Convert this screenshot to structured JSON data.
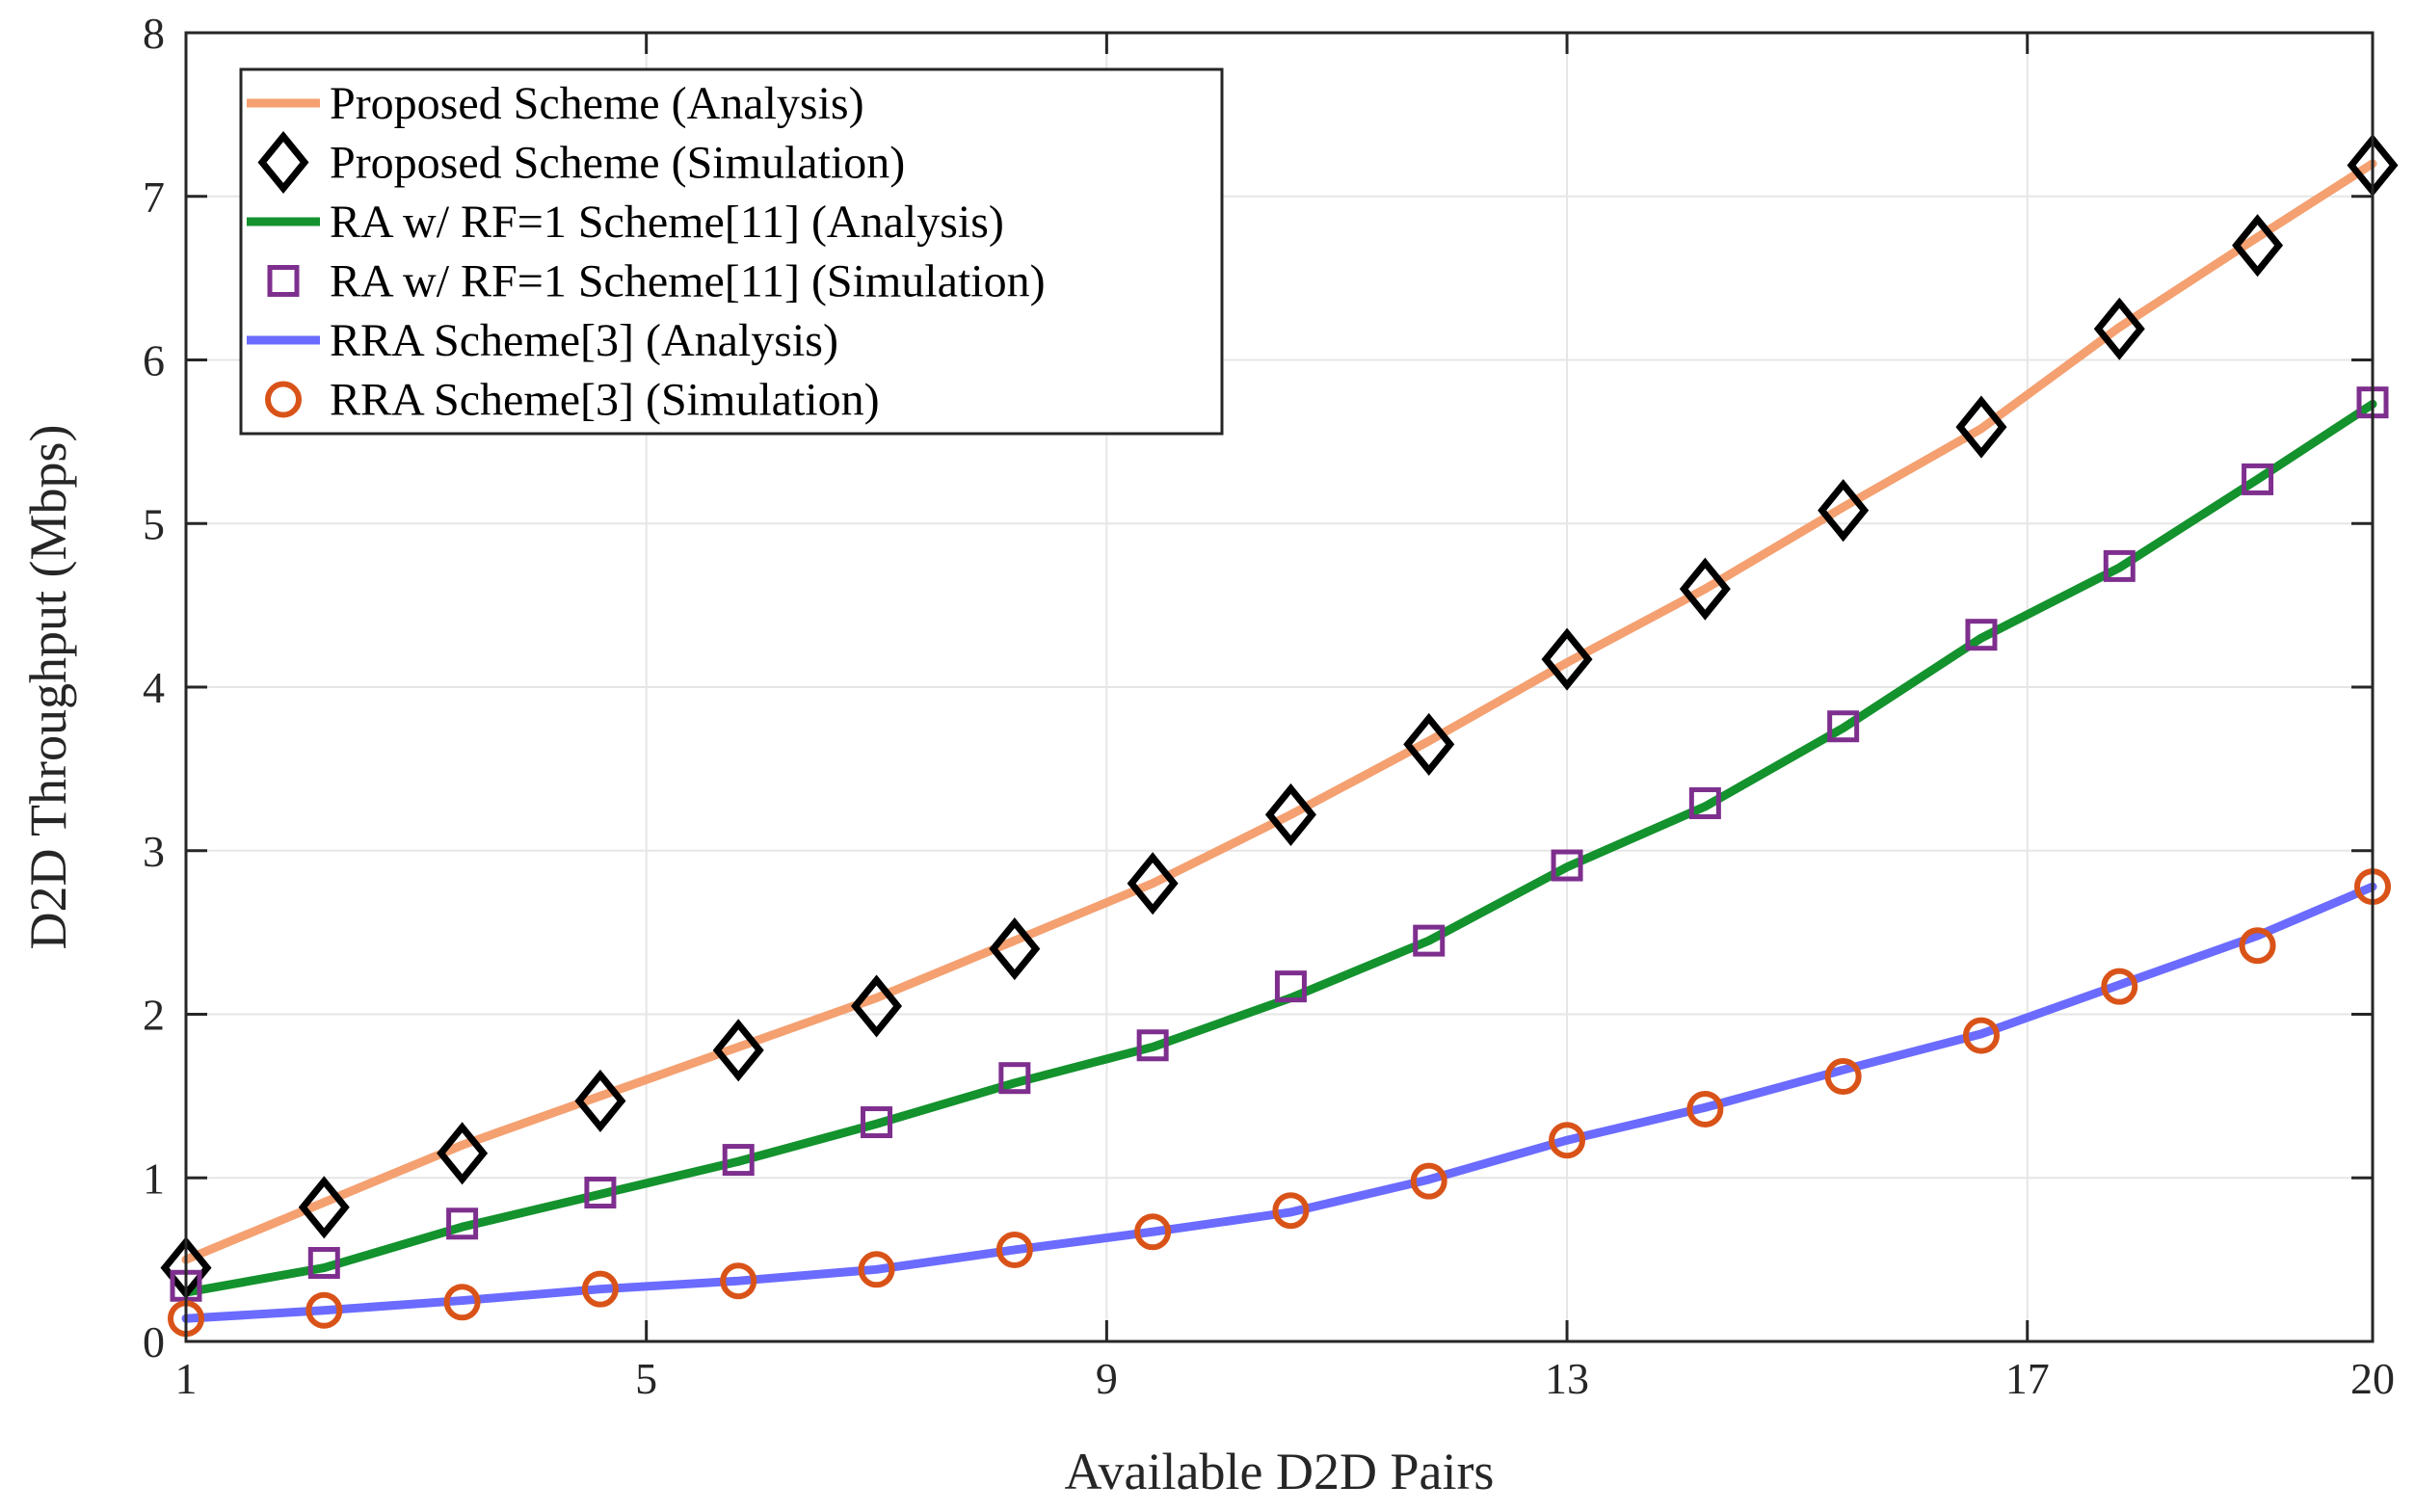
{
  "chart_data": {
    "type": "line",
    "title": "",
    "xlabel": "Available D2D Pairs",
    "ylabel": "D2D Throughput (Mbps)",
    "xlim": [
      1,
      20
    ],
    "ylim": [
      0,
      8
    ],
    "xticks": [
      1,
      5,
      9,
      13,
      17,
      20
    ],
    "yticks": [
      0,
      1,
      2,
      3,
      4,
      5,
      6,
      7,
      8
    ],
    "grid": true,
    "legend_position": "top-left",
    "x": [
      1,
      2.2,
      3.4,
      4.6,
      5.8,
      7,
      8.2,
      9.4,
      10.6,
      11.8,
      13,
      14.2,
      15.4,
      16.6,
      17.8,
      19,
      20
    ],
    "series": [
      {
        "name": "Proposed Scheme (Analysis)",
        "style": "line",
        "color": "#F4A070",
        "values": [
          0.5,
          0.85,
          1.2,
          1.5,
          1.8,
          2.1,
          2.45,
          2.8,
          3.22,
          3.67,
          4.15,
          4.6,
          5.1,
          5.58,
          6.2,
          6.75,
          7.2
        ]
      },
      {
        "name": "Proposed Scheme (Simulation)",
        "style": "marker",
        "marker": "diamond",
        "color": "#000000",
        "values": [
          0.45,
          0.82,
          1.15,
          1.47,
          1.78,
          2.05,
          2.4,
          2.8,
          3.22,
          3.65,
          4.17,
          4.6,
          5.08,
          5.59,
          6.19,
          6.7,
          7.19
        ]
      },
      {
        "name": "RA w/ RF=1 Scheme[11] (Analysis)",
        "style": "line",
        "color": "#13922D",
        "values": [
          0.3,
          0.45,
          0.7,
          0.9,
          1.1,
          1.33,
          1.58,
          1.8,
          2.1,
          2.45,
          2.9,
          3.27,
          3.75,
          4.3,
          4.73,
          5.27,
          5.73
        ]
      },
      {
        "name": "RA w/ RF=1 Scheme[11] (Simulation)",
        "style": "marker",
        "marker": "square",
        "color": "#7E2F8E",
        "values": [
          0.34,
          0.48,
          0.72,
          0.91,
          1.11,
          1.34,
          1.61,
          1.81,
          2.17,
          2.45,
          2.91,
          3.29,
          3.76,
          4.32,
          4.74,
          5.27,
          5.74
        ]
      },
      {
        "name": "RRA Scheme[3] (Analysis)",
        "style": "line",
        "color": "#6B6BFF",
        "values": [
          0.14,
          0.19,
          0.25,
          0.32,
          0.37,
          0.44,
          0.56,
          0.67,
          0.79,
          0.99,
          1.23,
          1.43,
          1.66,
          1.88,
          2.18,
          2.48,
          2.78
        ]
      },
      {
        "name": "RRA Scheme[3] (Simulation)",
        "style": "marker",
        "marker": "circle",
        "color": "#D95319",
        "values": [
          0.14,
          0.19,
          0.24,
          0.32,
          0.37,
          0.44,
          0.56,
          0.67,
          0.8,
          0.98,
          1.23,
          1.42,
          1.62,
          1.87,
          2.17,
          2.42,
          2.78
        ]
      }
    ]
  }
}
